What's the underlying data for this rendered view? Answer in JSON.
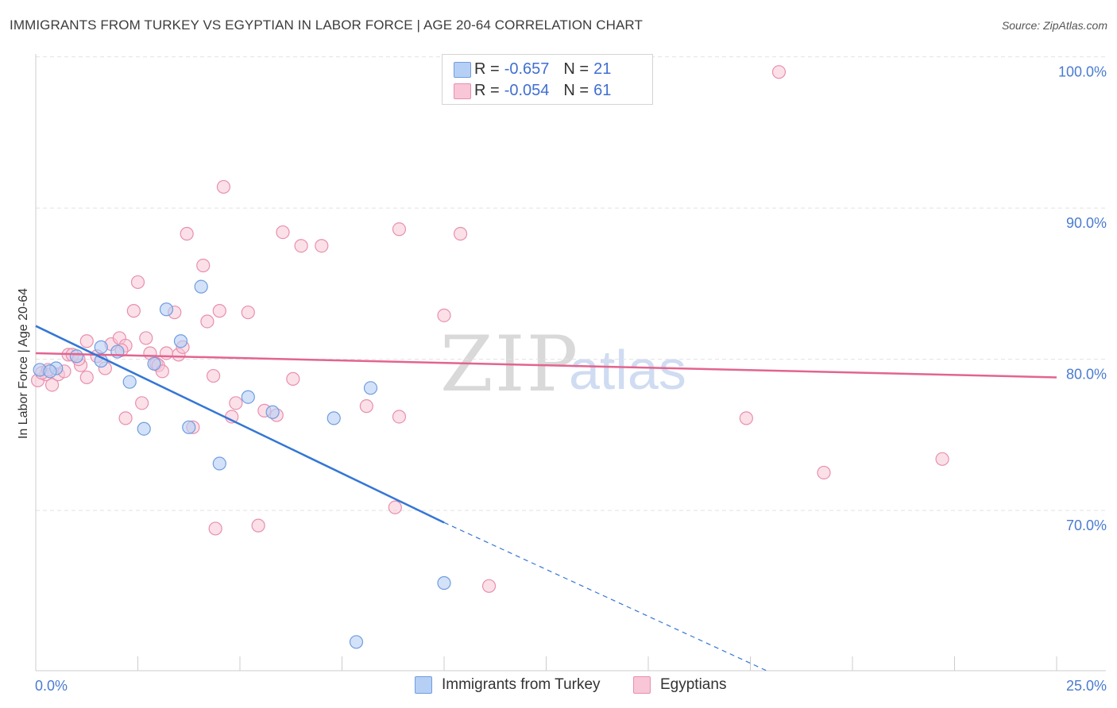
{
  "title": "IMMIGRANTS FROM TURKEY VS EGYPTIAN IN LABOR FORCE | AGE 20-64 CORRELATION CHART",
  "source": "Source: ZipAtlas.com",
  "watermark": {
    "zip": "ZIP",
    "atlas": "atlas"
  },
  "colors": {
    "turkey_fill": "#b6cff5",
    "turkey_stroke": "#6f9de0",
    "turkey_line": "#3476d6",
    "egypt_fill": "#f8c6d6",
    "egypt_stroke": "#e88fae",
    "egypt_line": "#e3648f",
    "tick_text": "#4a7bd0",
    "grid": "#e2e2e2"
  },
  "legend": {
    "rows": [
      {
        "r_label": "R =",
        "r_value": "-0.657",
        "n_label": "N =",
        "n_value": "21"
      },
      {
        "r_label": "R =",
        "r_value": "-0.054",
        "n_label": "N =",
        "n_value": "61"
      }
    ]
  },
  "bottom_legend": {
    "items": [
      "Immigrants from Turkey",
      "Egyptians"
    ]
  },
  "chart_data": {
    "type": "scatter",
    "title": "IMMIGRANTS FROM TURKEY VS EGYPTIAN IN LABOR FORCE | AGE 20-64 CORRELATION CHART",
    "xlabel": "",
    "ylabel": "In Labor Force | Age 20-64",
    "xlim": [
      0,
      25
    ],
    "ylim": [
      60.4,
      101.4
    ],
    "x_tick_labels": [
      {
        "value": 0,
        "label": "0.0%"
      },
      {
        "value": 25,
        "label": "25.0%"
      }
    ],
    "y_tick_labels": [
      {
        "value": 100,
        "label": "100.0%"
      },
      {
        "value": 90,
        "label": "90.0%"
      },
      {
        "value": 80,
        "label": "80.0%"
      },
      {
        "value": 70,
        "label": "70.0%"
      }
    ],
    "y_gridlines": [
      101,
      91,
      81,
      71
    ],
    "series": [
      {
        "name": "Immigrants from Turkey",
        "color": "#6f9de0",
        "points": [
          [
            0.1,
            80.3
          ],
          [
            0.5,
            80.4
          ],
          [
            1.0,
            81.2
          ],
          [
            1.6,
            81.8
          ],
          [
            2.0,
            81.5
          ],
          [
            2.3,
            79.5
          ],
          [
            2.65,
            76.4
          ],
          [
            2.9,
            80.7
          ],
          [
            3.2,
            84.3
          ],
          [
            3.55,
            82.2
          ],
          [
            3.75,
            76.5
          ],
          [
            4.05,
            85.8
          ],
          [
            4.5,
            74.1
          ],
          [
            5.2,
            78.5
          ],
          [
            5.8,
            77.5
          ],
          [
            7.3,
            77.1
          ],
          [
            8.2,
            79.1
          ],
          [
            10.0,
            66.2
          ],
          [
            7.85,
            62.3
          ],
          [
            0.35,
            80.2
          ],
          [
            1.6,
            80.9
          ]
        ],
        "trend": {
          "x": [
            0.0,
            10.0
          ],
          "y": [
            83.2,
            70.2
          ],
          "extended_to": [
            17.9,
            60.4
          ]
        }
      },
      {
        "name": "Egyptians",
        "color": "#e88fae",
        "points": [
          [
            0.05,
            79.6
          ],
          [
            0.25,
            80.0
          ],
          [
            0.4,
            79.3
          ],
          [
            0.55,
            80.0
          ],
          [
            0.8,
            81.3
          ],
          [
            0.9,
            81.3
          ],
          [
            1.1,
            80.6
          ],
          [
            1.25,
            79.8
          ],
          [
            1.25,
            82.2
          ],
          [
            1.5,
            81.2
          ],
          [
            1.7,
            80.4
          ],
          [
            1.85,
            82.0
          ],
          [
            2.05,
            82.4
          ],
          [
            2.2,
            81.9
          ],
          [
            2.2,
            77.1
          ],
          [
            2.4,
            84.2
          ],
          [
            2.5,
            86.1
          ],
          [
            2.6,
            78.1
          ],
          [
            2.7,
            82.4
          ],
          [
            2.8,
            81.4
          ],
          [
            2.95,
            80.7
          ],
          [
            3.0,
            80.6
          ],
          [
            3.1,
            80.2
          ],
          [
            3.2,
            81.4
          ],
          [
            3.4,
            84.1
          ],
          [
            3.5,
            81.3
          ],
          [
            3.6,
            81.8
          ],
          [
            3.7,
            89.3
          ],
          [
            3.85,
            76.5
          ],
          [
            4.1,
            87.2
          ],
          [
            4.2,
            83.5
          ],
          [
            4.35,
            79.9
          ],
          [
            4.4,
            69.8
          ],
          [
            4.5,
            84.2
          ],
          [
            4.6,
            92.4
          ],
          [
            4.8,
            77.2
          ],
          [
            4.9,
            78.1
          ],
          [
            5.2,
            84.1
          ],
          [
            5.45,
            70.0
          ],
          [
            5.6,
            77.6
          ],
          [
            5.9,
            77.3
          ],
          [
            6.05,
            89.4
          ],
          [
            6.3,
            79.7
          ],
          [
            6.5,
            88.5
          ],
          [
            7.0,
            88.5
          ],
          [
            8.1,
            77.9
          ],
          [
            8.9,
            77.2
          ],
          [
            8.8,
            71.2
          ],
          [
            8.9,
            89.6
          ],
          [
            10.0,
            83.9
          ],
          [
            10.4,
            89.3
          ],
          [
            11.1,
            66.0
          ],
          [
            17.4,
            77.1
          ],
          [
            18.2,
            100.0
          ],
          [
            19.3,
            73.5
          ],
          [
            22.2,
            74.4
          ],
          [
            0.7,
            80.2
          ],
          [
            0.15,
            80.1
          ],
          [
            0.3,
            80.3
          ],
          [
            1.05,
            81.0
          ],
          [
            2.1,
            81.6
          ]
        ],
        "trend": {
          "x": [
            0.0,
            25.0
          ],
          "y": [
            81.4,
            79.8
          ]
        }
      }
    ]
  }
}
